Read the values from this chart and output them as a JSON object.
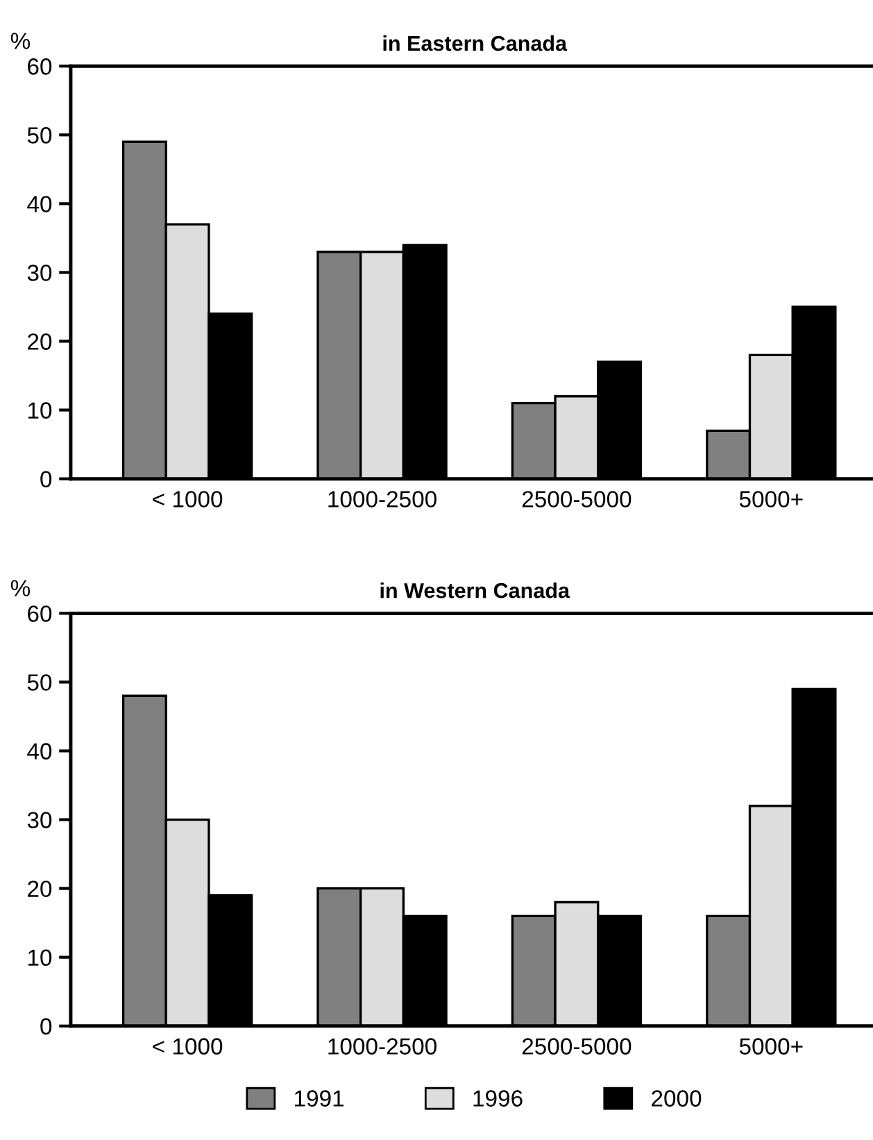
{
  "chart_data": [
    {
      "type": "bar",
      "title": "in Eastern Canada",
      "ylabel": "%",
      "categories": [
        "< 1000",
        "1000-2500",
        "2500-5000",
        "5000+"
      ],
      "ylim": [
        0,
        60
      ],
      "yticks": [
        0,
        10,
        20,
        30,
        40,
        50,
        60
      ],
      "grid": false,
      "legend": false,
      "series": [
        {
          "color": "#808080",
          "values": [
            49,
            33,
            11,
            7
          ]
        },
        {
          "color": "#dddddd",
          "values": [
            37,
            33,
            12,
            18
          ]
        },
        {
          "color": "#000000",
          "values": [
            24,
            34,
            17,
            25
          ]
        }
      ]
    },
    {
      "type": "bar",
      "title": "in Western Canada",
      "ylabel": "%",
      "categories": [
        "< 1000",
        "1000-2500",
        "2500-5000",
        "5000+"
      ],
      "ylim": [
        0,
        60
      ],
      "yticks": [
        0,
        10,
        20,
        30,
        40,
        50,
        60
      ],
      "grid": false,
      "legend": "bottom",
      "series": [
        {
          "name": "1991",
          "color": "#808080",
          "values": [
            48,
            20,
            16,
            16
          ]
        },
        {
          "name": "1996",
          "color": "#dddddd",
          "values": [
            30,
            20,
            18,
            32
          ]
        },
        {
          "name": "2000",
          "color": "#000000",
          "values": [
            19,
            16,
            16,
            49
          ]
        }
      ]
    }
  ]
}
